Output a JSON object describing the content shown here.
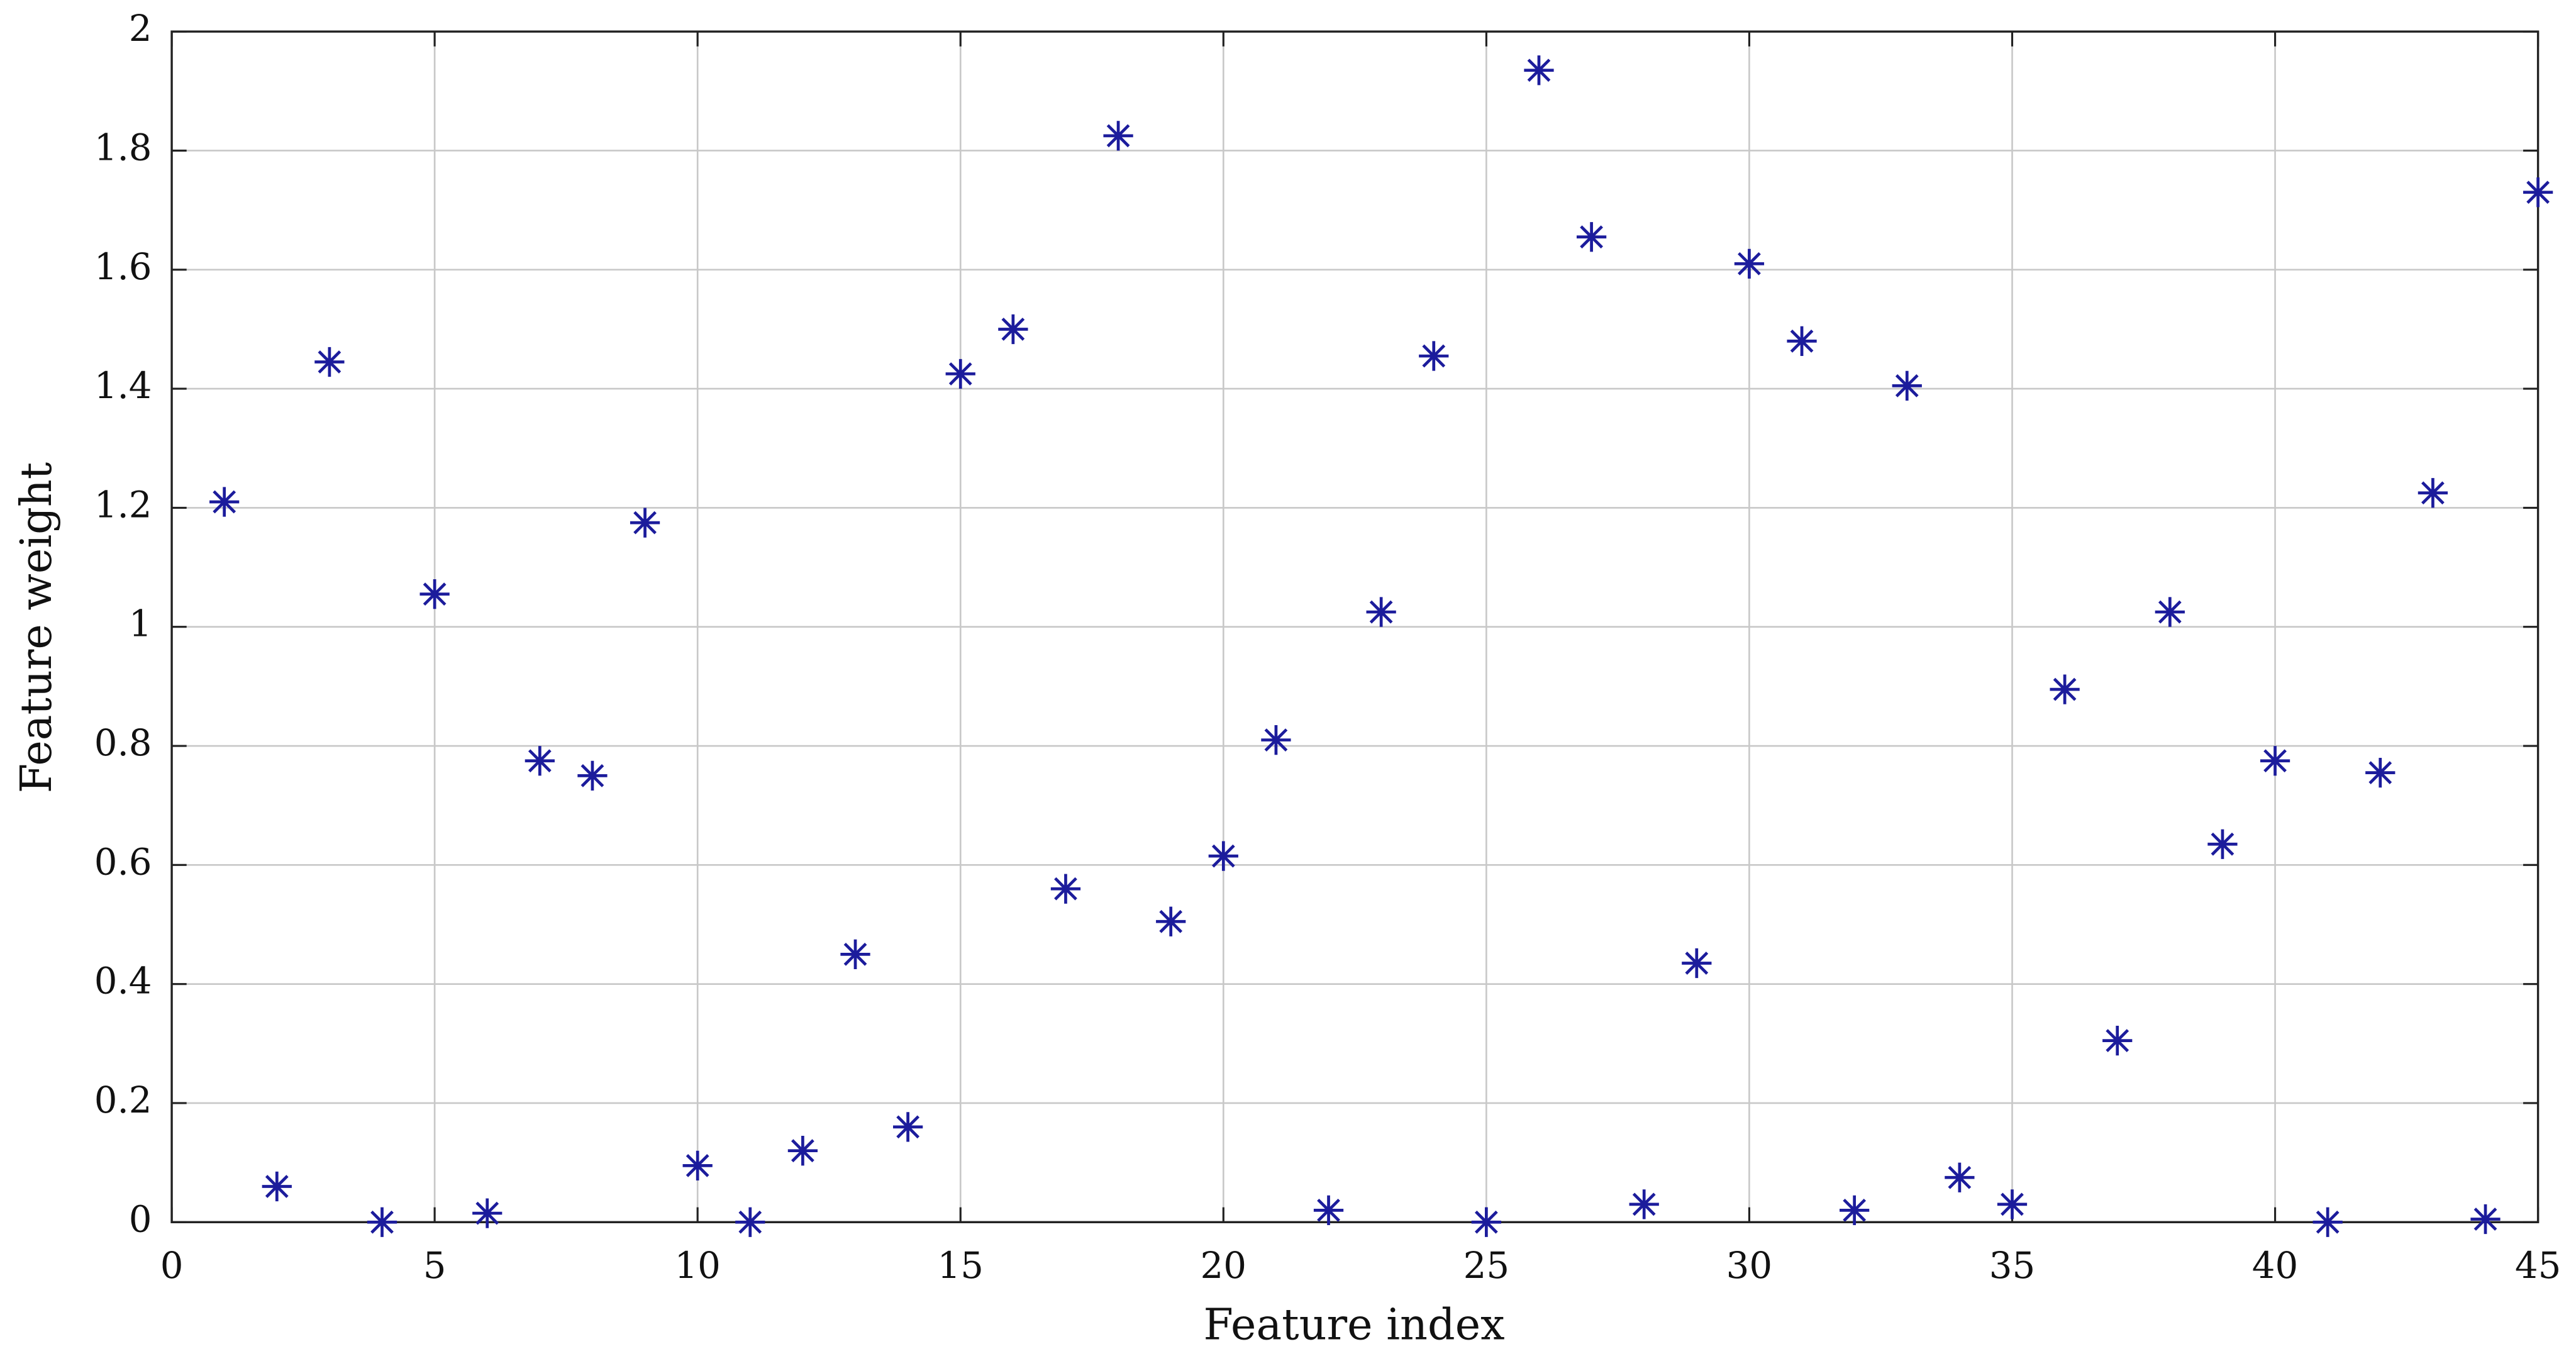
{
  "chart_data": {
    "type": "scatter",
    "xlabel": "Feature index",
    "ylabel": "Feature weight",
    "x": [
      1,
      2,
      3,
      4,
      5,
      6,
      7,
      8,
      9,
      10,
      11,
      12,
      13,
      14,
      15,
      16,
      17,
      18,
      19,
      20,
      21,
      22,
      23,
      24,
      25,
      26,
      27,
      28,
      29,
      30,
      31,
      32,
      33,
      34,
      35,
      36,
      37,
      38,
      39,
      40,
      41,
      42,
      43,
      44,
      45
    ],
    "values": [
      1.21,
      0.06,
      1.445,
      0.0,
      1.055,
      0.015,
      0.775,
      0.75,
      1.175,
      0.095,
      0.0,
      0.12,
      0.45,
      0.16,
      1.425,
      1.5,
      0.56,
      1.825,
      0.505,
      0.615,
      0.81,
      0.02,
      1.025,
      1.455,
      0.0,
      1.935,
      1.655,
      0.03,
      0.435,
      1.61,
      1.48,
      0.02,
      1.405,
      0.075,
      0.03,
      0.895,
      0.305,
      1.025,
      0.635,
      0.775,
      0.0,
      0.755,
      1.225,
      0.005,
      1.73
    ],
    "color": "#1c1c9c",
    "marker": "asterisk",
    "xlim": [
      0,
      45
    ],
    "xticks": [
      0,
      5,
      10,
      15,
      20,
      25,
      30,
      35,
      40,
      45
    ],
    "ylim": [
      0,
      2
    ],
    "yticks": [
      0,
      0.2,
      0.4,
      0.6,
      0.8,
      1,
      1.2,
      1.4,
      1.6,
      1.8,
      2
    ],
    "grid": true
  }
}
